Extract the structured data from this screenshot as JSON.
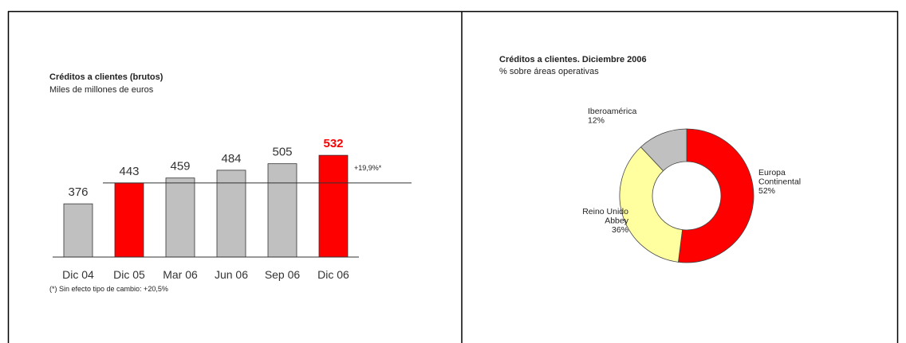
{
  "chart_data": [
    {
      "type": "bar",
      "title": "Créditos a clientes (brutos)",
      "subtitle": "Miles de millones de euros",
      "categories": [
        "Dic 04",
        "Dic 05",
        "Mar 06",
        "Jun 06",
        "Sep 06",
        "Dic 06"
      ],
      "values": [
        376,
        443,
        459,
        484,
        505,
        532
      ],
      "colors": [
        "#c0c0c0",
        "#ff0000",
        "#c0c0c0",
        "#c0c0c0",
        "#c0c0c0",
        "#ff0000"
      ],
      "label_colors": [
        "#333333",
        "#333333",
        "#333333",
        "#333333",
        "#333333",
        "#ff0000"
      ],
      "ylim": [
        205,
        540
      ],
      "reference_value": 443,
      "annotation": "+19,9%*",
      "footnote": "(*) Sin efecto tipo de cambio: +20,5%"
    },
    {
      "type": "donut",
      "title": "Créditos a clientes. Diciembre 2006",
      "subtitle": "% sobre áreas operativas",
      "categories": [
        "Europa\nContinental",
        "Reino Unido\nAbbey",
        "Iberoamérica"
      ],
      "values": [
        52,
        36,
        12
      ],
      "value_labels": [
        "52%",
        "36%",
        "12%"
      ],
      "colors": [
        "#ff0000",
        "#ffffa0",
        "#c0c0c0"
      ]
    }
  ]
}
